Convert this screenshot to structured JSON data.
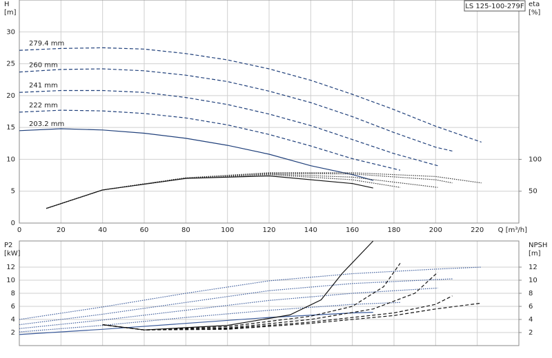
{
  "chart_data": [
    {
      "type": "line",
      "title": "LS 125-100-279F",
      "xlabel": "Q [m³/h]",
      "ylabel": "H",
      "yunit": "[m]",
      "y2label": "eta",
      "y2unit": "[%]",
      "xlim": [
        0,
        240
      ],
      "xticks": [
        0,
        20,
        40,
        60,
        80,
        100,
        120,
        140,
        160,
        180,
        200,
        220
      ],
      "ylim": [
        0,
        35
      ],
      "yticks": [
        0,
        5,
        10,
        15,
        20,
        25,
        30
      ],
      "y2lim": [
        0,
        350
      ],
      "y2ticks": [
        50,
        100
      ],
      "grid": true,
      "series": [
        {
          "name": "279.4 mm",
          "color": "#1f3f7a",
          "style": "dashed",
          "x": [
            0,
            20,
            40,
            60,
            80,
            100,
            120,
            140,
            160,
            180,
            200,
            222
          ],
          "values": [
            27.1,
            27.4,
            27.5,
            27.3,
            26.6,
            25.6,
            24.2,
            22.4,
            20.2,
            17.8,
            15.2,
            12.7
          ]
        },
        {
          "name": "260 mm",
          "color": "#1f3f7a",
          "style": "dashed",
          "x": [
            0,
            20,
            40,
            60,
            80,
            100,
            120,
            140,
            160,
            180,
            200,
            208
          ],
          "values": [
            23.7,
            24.1,
            24.2,
            23.9,
            23.2,
            22.2,
            20.7,
            18.9,
            16.7,
            14.2,
            11.9,
            11.3
          ]
        },
        {
          "name": "241 mm",
          "color": "#1f3f7a",
          "style": "dashed",
          "x": [
            0,
            20,
            40,
            60,
            80,
            100,
            120,
            140,
            160,
            180,
            201
          ],
          "values": [
            20.5,
            20.8,
            20.8,
            20.5,
            19.7,
            18.6,
            17.1,
            15.3,
            13.1,
            10.9,
            9.0
          ]
        },
        {
          "name": "222 mm",
          "color": "#1f3f7a",
          "style": "dashed",
          "x": [
            0,
            20,
            40,
            60,
            80,
            100,
            120,
            140,
            160,
            183
          ],
          "values": [
            17.4,
            17.7,
            17.6,
            17.2,
            16.5,
            15.4,
            13.9,
            12.1,
            10.1,
            8.3
          ]
        },
        {
          "name": "203.2 mm",
          "color": "#1f3f7a",
          "style": "solid",
          "x": [
            0,
            20,
            40,
            60,
            80,
            100,
            120,
            140,
            160,
            170
          ],
          "values": [
            14.5,
            14.8,
            14.6,
            14.1,
            13.3,
            12.2,
            10.8,
            9.0,
            7.6,
            6.7
          ]
        },
        {
          "color": "#333333",
          "style": "dotted",
          "axis": "y2",
          "x": [
            13,
            40,
            80,
            120,
            160,
            200,
            222
          ],
          "values": [
            23,
            52,
            71,
            79,
            79,
            73,
            63
          ]
        },
        {
          "color": "#333333",
          "style": "dotted",
          "axis": "y2",
          "x": [
            13,
            40,
            80,
            120,
            160,
            200,
            208
          ],
          "values": [
            23,
            52,
            71,
            78,
            77,
            68,
            63
          ]
        },
        {
          "color": "#333333",
          "style": "dotted",
          "axis": "y2",
          "x": [
            13,
            40,
            80,
            120,
            160,
            201
          ],
          "values": [
            23,
            52,
            71,
            77,
            72,
            56
          ]
        },
        {
          "color": "#333333",
          "style": "dotted",
          "axis": "y2",
          "x": [
            13,
            40,
            80,
            120,
            160,
            183
          ],
          "values": [
            23,
            52,
            70,
            76,
            68,
            56
          ]
        },
        {
          "color": "#111111",
          "style": "solid",
          "axis": "y2",
          "x": [
            13,
            40,
            80,
            120,
            160,
            170
          ],
          "values": [
            23,
            52,
            70,
            74,
            62,
            55
          ]
        }
      ]
    },
    {
      "type": "line",
      "ylabel": "P2",
      "yunit": "[kW]",
      "y2label": "NPSH",
      "y2unit": "[m]",
      "xlim": [
        0,
        240
      ],
      "xticks": [
        0,
        20,
        40,
        60,
        80,
        100,
        120,
        140,
        160,
        180,
        200,
        220
      ],
      "ylim": [
        0,
        16
      ],
      "yticks": [
        2,
        4,
        6,
        8,
        10,
        12
      ],
      "y2lim": [
        0,
        16
      ],
      "y2ticks": [
        2,
        4,
        6,
        8,
        10,
        12
      ],
      "grid": true,
      "series": [
        {
          "color": "#3a5a9a",
          "style": "dotted",
          "x": [
            0,
            40,
            80,
            120,
            160,
            200,
            222
          ],
          "values": [
            4.0,
            5.9,
            8.0,
            9.9,
            11.0,
            11.7,
            12.0
          ]
        },
        {
          "color": "#3a5a9a",
          "style": "dotted",
          "x": [
            0,
            40,
            80,
            120,
            160,
            200,
            208
          ],
          "values": [
            3.2,
            4.8,
            6.6,
            8.4,
            9.5,
            10.1,
            10.2
          ]
        },
        {
          "color": "#3a5a9a",
          "style": "dotted",
          "x": [
            0,
            40,
            80,
            120,
            160,
            201
          ],
          "values": [
            2.6,
            3.9,
            5.4,
            6.9,
            8.0,
            8.8
          ]
        },
        {
          "color": "#3a5a9a",
          "style": "dotted",
          "x": [
            0,
            40,
            80,
            120,
            160,
            183
          ],
          "values": [
            2.1,
            3.1,
            4.3,
            5.4,
            6.3,
            6.6
          ]
        },
        {
          "color": "#3a5a9a",
          "style": "solid",
          "x": [
            0,
            40,
            80,
            120,
            160,
            170
          ],
          "values": [
            1.7,
            2.5,
            3.4,
            4.3,
            5.0,
            5.1
          ]
        },
        {
          "color": "#111111",
          "style": "dashed",
          "axis": "y2",
          "x": [
            40,
            60,
            100,
            140,
            180,
            200,
            222
          ],
          "values": [
            3.2,
            2.4,
            2.5,
            3.4,
            4.6,
            5.6,
            6.5
          ]
        },
        {
          "color": "#111111",
          "style": "dashed",
          "axis": "y2",
          "x": [
            40,
            60,
            100,
            140,
            180,
            200,
            208
          ],
          "values": [
            3.2,
            2.4,
            2.6,
            3.6,
            5.0,
            6.3,
            7.6
          ]
        },
        {
          "color": "#111111",
          "style": "dashed",
          "axis": "y2",
          "x": [
            40,
            60,
            100,
            140,
            170,
            190,
            201
          ],
          "values": [
            3.2,
            2.4,
            2.7,
            4.0,
            5.6,
            8.0,
            11.2
          ]
        },
        {
          "color": "#111111",
          "style": "dashed",
          "axis": "y2",
          "x": [
            40,
            60,
            100,
            140,
            160,
            175,
            183
          ],
          "values": [
            3.2,
            2.4,
            2.9,
            4.5,
            6.0,
            9.0,
            12.6
          ]
        },
        {
          "color": "#111111",
          "style": "solid",
          "axis": "y2",
          "x": [
            40,
            60,
            100,
            130,
            145,
            155,
            170
          ],
          "values": [
            3.2,
            2.4,
            3.1,
            4.7,
            7.0,
            11.0,
            16.0
          ]
        }
      ]
    }
  ]
}
